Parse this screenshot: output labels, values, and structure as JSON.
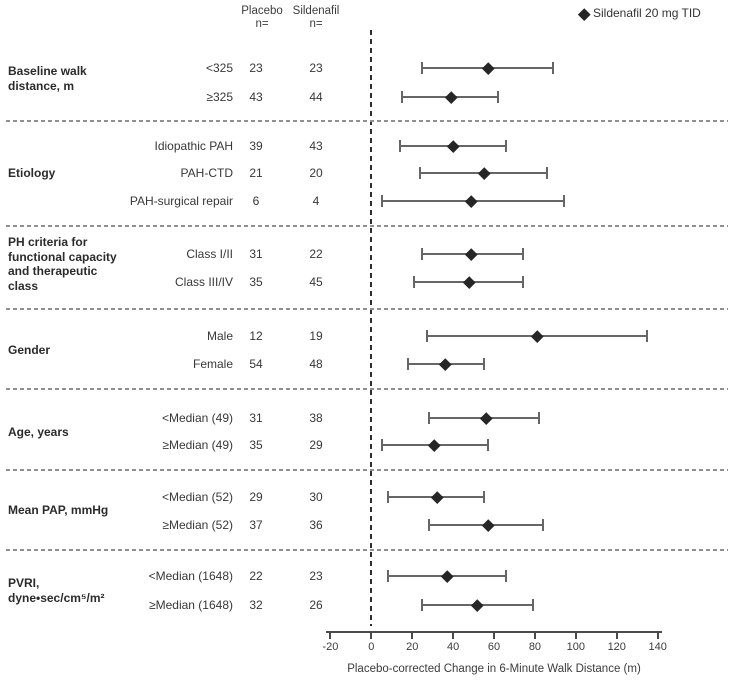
{
  "header": {
    "placebo_title": "Placebo",
    "placebo_sub": "n=",
    "sildenafil_title": "Sildenafil",
    "sildenafil_sub": "n="
  },
  "legend": {
    "marker": "diamond-icon",
    "label": "Sildenafil 20 mg TID"
  },
  "axis": {
    "label": "Placebo-corrected Change in 6-Minute Walk Distance (m)",
    "ticks": [
      -20,
      0,
      20,
      40,
      60,
      80,
      100,
      120,
      140
    ],
    "min": -20,
    "max": 140
  },
  "colors": {
    "diamond": "#262626",
    "error_bar": "#666666",
    "zero_line": "#2e2e2e",
    "divider": "#909090",
    "axis": "#4a4a4a"
  },
  "chart_data": {
    "type": "scatter",
    "subtype": "forest-plot",
    "title": "",
    "xlabel": "Placebo-corrected Change in 6-Minute Walk Distance (m)",
    "xlim": [
      -20,
      140
    ],
    "legend_entry": "Sildenafil 20 mg TID",
    "columns": [
      "Placebo n=",
      "Sildenafil n="
    ],
    "groups": [
      {
        "label_lines": [
          "Baseline walk",
          "distance, m"
        ],
        "rows": [
          {
            "subgroup": "<325",
            "placebo_n": 23,
            "sildenafil_n": 23,
            "estimate": 57,
            "ci_low": 25,
            "ci_high": 89
          },
          {
            "subgroup": "≥325",
            "placebo_n": 43,
            "sildenafil_n": 44,
            "estimate": 39,
            "ci_low": 15,
            "ci_high": 62
          }
        ]
      },
      {
        "label_lines": [
          "Etiology"
        ],
        "rows": [
          {
            "subgroup": "Idiopathic PAH",
            "placebo_n": 39,
            "sildenafil_n": 43,
            "estimate": 40,
            "ci_low": 14,
            "ci_high": 66
          },
          {
            "subgroup": "PAH-CTD",
            "placebo_n": 21,
            "sildenafil_n": 20,
            "estimate": 55,
            "ci_low": 24,
            "ci_high": 86
          },
          {
            "subgroup": "PAH-surgical repair",
            "placebo_n": 6,
            "sildenafil_n": 4,
            "estimate": 49,
            "ci_low": 5,
            "ci_high": 94
          }
        ]
      },
      {
        "label_lines": [
          "PH criteria for",
          "functional capacity",
          "and therapeutic",
          "class"
        ],
        "rows": [
          {
            "subgroup": "Class I/II",
            "placebo_n": 31,
            "sildenafil_n": 22,
            "estimate": 49,
            "ci_low": 25,
            "ci_high": 74
          },
          {
            "subgroup": "Class III/IV",
            "placebo_n": 35,
            "sildenafil_n": 45,
            "estimate": 48,
            "ci_low": 21,
            "ci_high": 74
          }
        ]
      },
      {
        "label_lines": [
          "Gender"
        ],
        "rows": [
          {
            "subgroup": "Male",
            "placebo_n": 12,
            "sildenafil_n": 19,
            "estimate": 81,
            "ci_low": 27,
            "ci_high": 135
          },
          {
            "subgroup": "Female",
            "placebo_n": 54,
            "sildenafil_n": 48,
            "estimate": 36,
            "ci_low": 18,
            "ci_high": 55
          }
        ]
      },
      {
        "label_lines": [
          "Age, years"
        ],
        "rows": [
          {
            "subgroup": "<Median (49)",
            "placebo_n": 31,
            "sildenafil_n": 38,
            "estimate": 56,
            "ci_low": 28,
            "ci_high": 82
          },
          {
            "subgroup": "≥Median (49)",
            "placebo_n": 35,
            "sildenafil_n": 29,
            "estimate": 31,
            "ci_low": 5,
            "ci_high": 57
          }
        ]
      },
      {
        "label_lines": [
          "Mean PAP, mmHg"
        ],
        "rows": [
          {
            "subgroup": "<Median (52)",
            "placebo_n": 29,
            "sildenafil_n": 30,
            "estimate": 32,
            "ci_low": 8,
            "ci_high": 55
          },
          {
            "subgroup": "≥Median (52)",
            "placebo_n": 37,
            "sildenafil_n": 36,
            "estimate": 57,
            "ci_low": 28,
            "ci_high": 84
          }
        ]
      },
      {
        "label_lines": [
          "PVRI,",
          "dyne•sec/cm⁵/m²"
        ],
        "rows": [
          {
            "subgroup": "<Median (1648)",
            "placebo_n": 22,
            "sildenafil_n": 23,
            "estimate": 37,
            "ci_low": 8,
            "ci_high": 66
          },
          {
            "subgroup": "≥Median (1648)",
            "placebo_n": 32,
            "sildenafil_n": 26,
            "estimate": 52,
            "ci_low": 25,
            "ci_high": 79
          }
        ]
      }
    ]
  }
}
